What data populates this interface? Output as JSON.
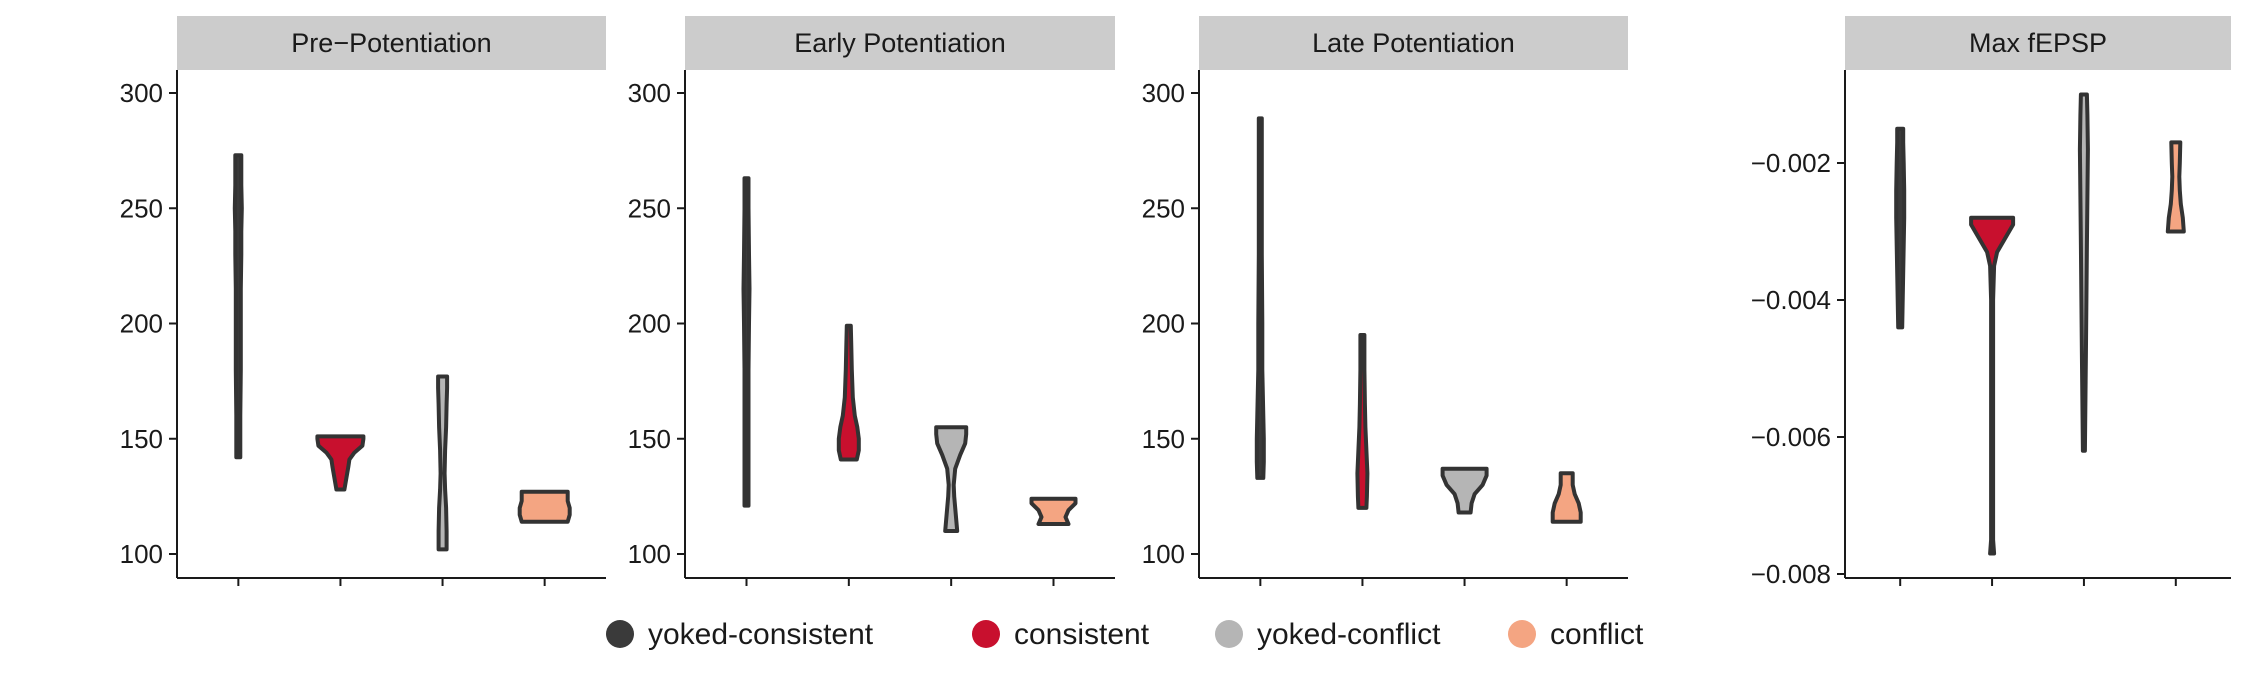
{
  "chart_data": {
    "type": "violin",
    "series": [
      {
        "name": "yoked-consistent",
        "color": "#3a3a3a"
      },
      {
        "name": "consistent",
        "color": "#c8102e"
      },
      {
        "name": "yoked-conflict",
        "color": "#b5b5b5"
      },
      {
        "name": "conflict",
        "color": "#f4a582"
      }
    ],
    "legend": {
      "placement": "bottom"
    },
    "panels": [
      {
        "title": "Pre−Potentiation",
        "ylim": [
          90,
          310
        ],
        "yticks": [
          100,
          150,
          200,
          250,
          300
        ],
        "ytick_labels": [
          "100",
          "150",
          "200",
          "250",
          "300"
        ],
        "violins": [
          {
            "series": "yoked-consistent",
            "min": 142,
            "max": 273,
            "profile": [
              [
                142,
                4
              ],
              [
                160,
                4
              ],
              [
                180,
                5
              ],
              [
                200,
                5
              ],
              [
                215,
                5
              ],
              [
                230,
                6
              ],
              [
                240,
                6
              ],
              [
                250,
                7
              ],
              [
                260,
                6
              ],
              [
                268,
                6
              ],
              [
                273,
                6
              ]
            ]
          },
          {
            "series": "consistent",
            "min": 128,
            "max": 151,
            "profile": [
              [
                128,
                8
              ],
              [
                133,
                12
              ],
              [
                138,
                16
              ],
              [
                141,
                18
              ],
              [
                144,
                28
              ],
              [
                147,
                44
              ],
              [
                150,
                46
              ],
              [
                151,
                46
              ]
            ]
          },
          {
            "series": "yoked-conflict",
            "min": 102,
            "max": 177,
            "profile": [
              [
                102,
                8
              ],
              [
                110,
                8
              ],
              [
                120,
                7
              ],
              [
                128,
                5
              ],
              [
                135,
                4
              ],
              [
                145,
                5
              ],
              [
                155,
                7
              ],
              [
                165,
                8
              ],
              [
                172,
                9
              ],
              [
                177,
                9
              ]
            ]
          },
          {
            "series": "conflict",
            "min": 114,
            "max": 127,
            "profile": [
              [
                114,
                46
              ],
              [
                117,
                50
              ],
              [
                120,
                50
              ],
              [
                123,
                46
              ],
              [
                126,
                46
              ],
              [
                127,
                46
              ]
            ]
          }
        ]
      },
      {
        "title": "Early Potentiation",
        "ylim": [
          90,
          310
        ],
        "yticks": [
          100,
          150,
          200,
          250,
          300
        ],
        "ytick_labels": [
          "100",
          "150",
          "200",
          "250",
          "300"
        ],
        "violins": [
          {
            "series": "yoked-consistent",
            "min": 121,
            "max": 263,
            "profile": [
              [
                121,
                4
              ],
              [
                150,
                4
              ],
              [
                180,
                4
              ],
              [
                200,
                5
              ],
              [
                215,
                6
              ],
              [
                230,
                5
              ],
              [
                250,
                4
              ],
              [
                263,
                4
              ]
            ]
          },
          {
            "series": "consistent",
            "min": 141,
            "max": 199,
            "profile": [
              [
                141,
                16
              ],
              [
                145,
                20
              ],
              [
                150,
                20
              ],
              [
                155,
                17
              ],
              [
                160,
                12
              ],
              [
                168,
                8
              ],
              [
                180,
                6
              ],
              [
                190,
                5
              ],
              [
                199,
                4
              ]
            ]
          },
          {
            "series": "yoked-conflict",
            "min": 110,
            "max": 155,
            "profile": [
              [
                110,
                12
              ],
              [
                115,
                10
              ],
              [
                120,
                8
              ],
              [
                125,
                6
              ],
              [
                130,
                5
              ],
              [
                137,
                8
              ],
              [
                143,
                18
              ],
              [
                148,
                28
              ],
              [
                152,
                30
              ],
              [
                155,
                30
              ]
            ]
          },
          {
            "series": "conflict",
            "min": 113,
            "max": 124,
            "profile": [
              [
                113,
                30
              ],
              [
                116,
                24
              ],
              [
                119,
                30
              ],
              [
                122,
                44
              ],
              [
                124,
                44
              ]
            ]
          }
        ]
      },
      {
        "title": "Late Potentiation",
        "ylim": [
          90,
          310
        ],
        "yticks": [
          100,
          150,
          200,
          250,
          300
        ],
        "ytick_labels": [
          "100",
          "150",
          "200",
          "250",
          "300"
        ],
        "violins": [
          {
            "series": "yoked-consistent",
            "min": 133,
            "max": 289,
            "profile": [
              [
                133,
                6
              ],
              [
                140,
                7
              ],
              [
                150,
                7
              ],
              [
                160,
                6
              ],
              [
                180,
                4
              ],
              [
                200,
                4
              ],
              [
                230,
                3
              ],
              [
                260,
                3
              ],
              [
                289,
                3
              ]
            ]
          },
          {
            "series": "consistent",
            "min": 120,
            "max": 195,
            "profile": [
              [
                120,
                8
              ],
              [
                125,
                9
              ],
              [
                135,
                10
              ],
              [
                145,
                8
              ],
              [
                155,
                6
              ],
              [
                165,
                5
              ],
              [
                180,
                4
              ],
              [
                195,
                4
              ]
            ]
          },
          {
            "series": "yoked-conflict",
            "min": 118,
            "max": 137,
            "profile": [
              [
                118,
                12
              ],
              [
                122,
                14
              ],
              [
                126,
                20
              ],
              [
                130,
                36
              ],
              [
                134,
                44
              ],
              [
                137,
                44
              ]
            ]
          },
          {
            "series": "conflict",
            "min": 114,
            "max": 135,
            "profile": [
              [
                114,
                28
              ],
              [
                118,
                28
              ],
              [
                122,
                24
              ],
              [
                126,
                16
              ],
              [
                130,
                12
              ],
              [
                135,
                12
              ]
            ]
          }
        ]
      },
      {
        "title": "Max fEPSP",
        "ylim": [
          -0.008,
          -0.0007
        ],
        "yticks": [
          -0.002,
          -0.004,
          -0.006,
          -0.008
        ],
        "ytick_labels": [
          "−0.002",
          "−0.004",
          "−0.006",
          "−0.008"
        ],
        "violins": [
          {
            "series": "yoked-consistent",
            "min": -0.0044,
            "max": -0.0015,
            "profile": [
              [
                -0.0044,
                4
              ],
              [
                -0.004,
                5
              ],
              [
                -0.0036,
                6
              ],
              [
                -0.0032,
                7
              ],
              [
                -0.0028,
                8
              ],
              [
                -0.0024,
                8
              ],
              [
                -0.002,
                7
              ],
              [
                -0.0017,
                6
              ],
              [
                -0.0015,
                6
              ]
            ]
          },
          {
            "series": "consistent",
            "min": -0.0077,
            "max": -0.0028,
            "profile": [
              [
                -0.0077,
                4
              ],
              [
                -0.0075,
                2
              ],
              [
                -0.007,
                2
              ],
              [
                -0.006,
                2
              ],
              [
                -0.005,
                2
              ],
              [
                -0.004,
                2
              ],
              [
                -0.0035,
                4
              ],
              [
                -0.0033,
                10
              ],
              [
                -0.0031,
                26
              ],
              [
                -0.0029,
                42
              ],
              [
                -0.0028,
                42
              ]
            ]
          },
          {
            "series": "yoked-conflict",
            "min": -0.0062,
            "max": -0.001,
            "profile": [
              [
                -0.0062,
                2
              ],
              [
                -0.0055,
                3
              ],
              [
                -0.0048,
                4
              ],
              [
                -0.004,
                5
              ],
              [
                -0.0032,
                6
              ],
              [
                -0.0025,
                7
              ],
              [
                -0.0018,
                8
              ],
              [
                -0.0013,
                7
              ],
              [
                -0.001,
                6
              ]
            ]
          },
          {
            "series": "conflict",
            "min": -0.003,
            "max": -0.0017,
            "profile": [
              [
                -0.003,
                16
              ],
              [
                -0.0028,
                14
              ],
              [
                -0.0026,
                10
              ],
              [
                -0.0024,
                8
              ],
              [
                -0.0022,
                7
              ],
              [
                -0.002,
                8
              ],
              [
                -0.0017,
                9
              ]
            ]
          }
        ]
      }
    ]
  }
}
